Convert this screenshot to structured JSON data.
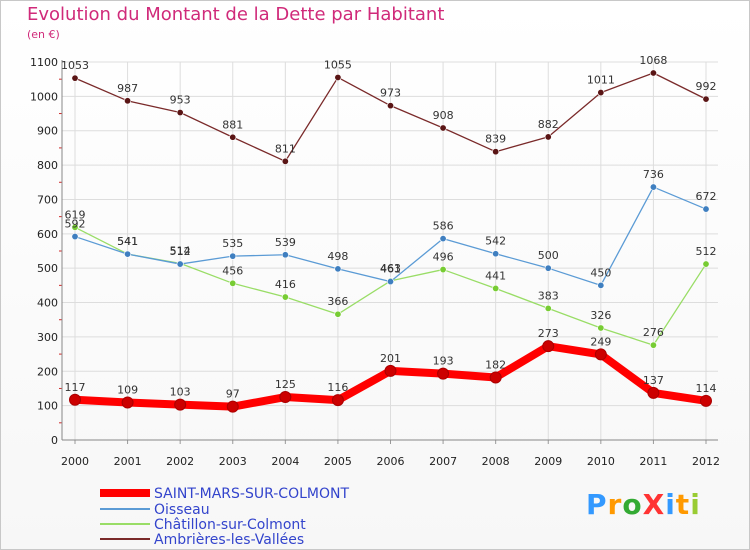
{
  "chart_data": {
    "type": "line",
    "title": "Evolution du Montant de la Dette par Habitant",
    "subtitle": "(en €)",
    "x": [
      "2000",
      "2001",
      "2002",
      "2003",
      "2004",
      "2005",
      "2006",
      "2007",
      "2008",
      "2009",
      "2010",
      "2011",
      "2012"
    ],
    "ylim": [
      0,
      1100
    ],
    "yticks": [
      0,
      100,
      200,
      300,
      400,
      500,
      600,
      700,
      800,
      900,
      1000,
      1100
    ],
    "grid": true,
    "legend_position": "bottom-left",
    "series": [
      {
        "name": "SAINT-MARS-SUR-COLMONT",
        "color": "#ff0000",
        "point_color": "#cc0000",
        "width": 8,
        "values": [
          117,
          109,
          103,
          97,
          125,
          116,
          201,
          193,
          182,
          273,
          249,
          137,
          114
        ]
      },
      {
        "name": "Oisseau",
        "color": "#5b9bd5",
        "point_color": "#3f7fc0",
        "width": 1.3,
        "values": [
          592,
          541,
          512,
          535,
          539,
          498,
          461,
          586,
          542,
          500,
          450,
          736,
          672
        ]
      },
      {
        "name": "Châtillon-sur-Colmont",
        "color": "#99dd66",
        "point_color": "#77cc33",
        "width": 1.3,
        "values": [
          619,
          541,
          514,
          456,
          416,
          366,
          463,
          496,
          441,
          383,
          326,
          276,
          512
        ]
      },
      {
        "name": "Ambrières-les-Vallées",
        "color": "#7a2a2a",
        "point_color": "#5a1515",
        "width": 1.3,
        "values": [
          1053,
          987,
          953,
          881,
          811,
          1055,
          973,
          908,
          839,
          882,
          1011,
          1068,
          992
        ]
      }
    ]
  },
  "logo": {
    "text": "ProXiti",
    "letters": [
      {
        "ch": "P",
        "color": "#3399ff"
      },
      {
        "ch": "r",
        "color": "#ff9900"
      },
      {
        "ch": "o",
        "color": "#33aa33"
      },
      {
        "ch": "X",
        "color": "#ff3333"
      },
      {
        "ch": "i",
        "color": "#3399ff"
      },
      {
        "ch": "t",
        "color": "#ff9900"
      },
      {
        "ch": "i",
        "color": "#99cc33"
      }
    ]
  }
}
